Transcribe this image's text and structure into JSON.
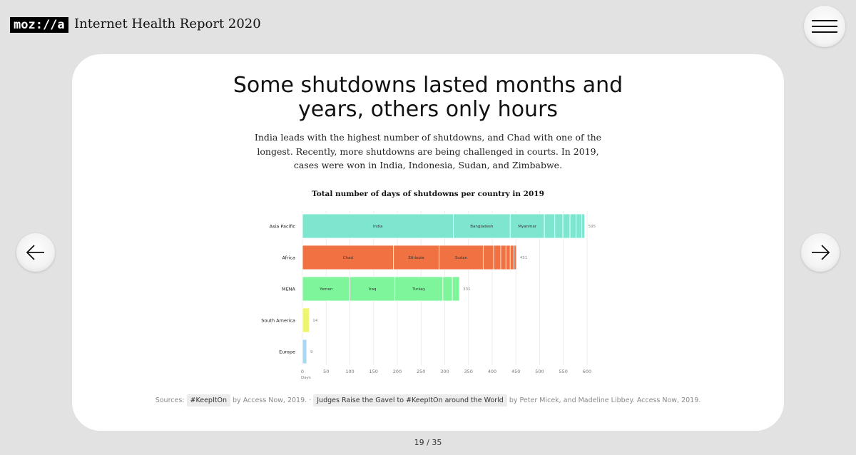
{
  "header": {
    "logo_text": "moz://a",
    "title": "Internet Health Report 2020",
    "menu_icon": "hamburger-icon"
  },
  "navigation": {
    "prev_icon": "arrow-left-icon",
    "next_icon": "arrow-right-icon",
    "pager": "19 / 35"
  },
  "slide": {
    "headline_line1": "Some shutdowns lasted months and",
    "headline_line2": "years, others only hours",
    "subtitle": "India leads with the highest number of shutdowns, and Chad with one of the longest. Recently, more shutdowns are being challenged in courts. In 2019, cases were won in India, Indonesia, Sudan, and Zimbabwe."
  },
  "chart_data": {
    "type": "bar",
    "orientation": "horizontal",
    "stacked": true,
    "title": "Total number of days of shutdowns per country in 2019",
    "xlabel": "Days",
    "xlim": [
      0,
      600
    ],
    "xticks": [
      "0",
      "50",
      "100",
      "150",
      "200",
      "250",
      "300",
      "350",
      "400",
      "450",
      "500",
      "550",
      "600"
    ],
    "grid": true,
    "categories": [
      "Asia Pacific",
      "Africa",
      "MENA",
      "South America",
      "Europe"
    ],
    "regions": [
      {
        "name": "Asia Pacific",
        "total": 595,
        "total_label": "595",
        "color": "#7ee6cf",
        "segments": [
          {
            "label": "India",
            "value": 318
          },
          {
            "label": "Bangladesh",
            "value": 120
          },
          {
            "label": "Myanmar",
            "value": 72
          },
          {
            "label": "",
            "value": 22
          },
          {
            "label": "",
            "value": 17
          },
          {
            "label": "",
            "value": 15
          },
          {
            "label": "",
            "value": 13
          },
          {
            "label": "",
            "value": 12
          },
          {
            "label": "",
            "value": 6
          }
        ]
      },
      {
        "name": "Africa",
        "total": 451,
        "total_label": "451",
        "color": "#f07243",
        "segments": [
          {
            "label": "Chad",
            "value": 192
          },
          {
            "label": "Ethiopia",
            "value": 96
          },
          {
            "label": "Sudan",
            "value": 93
          },
          {
            "label": "",
            "value": 22
          },
          {
            "label": "",
            "value": 15
          },
          {
            "label": "",
            "value": 11
          },
          {
            "label": "",
            "value": 9
          },
          {
            "label": "",
            "value": 8
          },
          {
            "label": "",
            "value": 5
          }
        ]
      },
      {
        "name": "MENA",
        "total": 331,
        "total_label": "331",
        "color": "#7ef59a",
        "segments": [
          {
            "label": "Yemen",
            "value": 100
          },
          {
            "label": "Iraq",
            "value": 95
          },
          {
            "label": "Turkey",
            "value": 101
          },
          {
            "label": "",
            "value": 20
          },
          {
            "label": "",
            "value": 15
          }
        ]
      },
      {
        "name": "South America",
        "total": 14,
        "total_label": "14",
        "color": "#eef56e",
        "segments": [
          {
            "label": "",
            "value": 14
          }
        ]
      },
      {
        "name": "Europe",
        "total": 9,
        "total_label": "9",
        "color": "#a9d8f2",
        "segments": [
          {
            "label": "",
            "value": 9
          }
        ]
      }
    ]
  },
  "sources": {
    "prefix": "Sources:",
    "link1": "#KeepItOn",
    "text1": "by Access Now, 2019.",
    "separator": "·",
    "link2": "Judges Raise the Gavel to #KeepItOn around the World",
    "text2": "by Peter Micek, and Madeline Libbey. Access Now, 2019."
  }
}
